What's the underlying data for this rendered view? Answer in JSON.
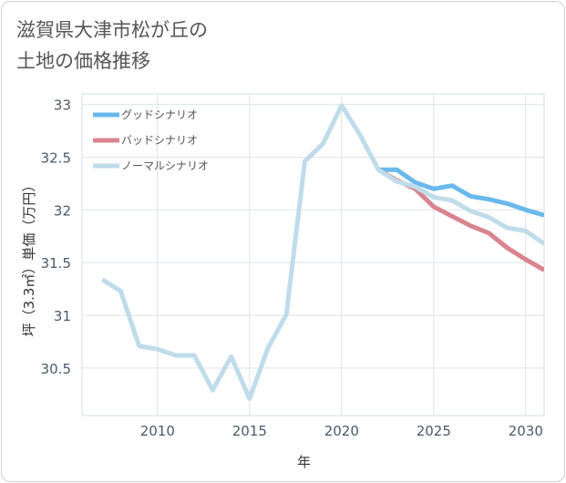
{
  "title": {
    "line1": "滋賀県大津市松が丘の",
    "line2": "土地の価格推移"
  },
  "chart_data": {
    "type": "line",
    "xlabel": "年",
    "ylabel": "坪（3.3㎡）単価（万円）",
    "xlim": [
      2005.9,
      2031
    ],
    "ylim": [
      30.05,
      33.1
    ],
    "x_ticks": [
      2010,
      2015,
      2020,
      2025,
      2030
    ],
    "y_ticks": [
      30.5,
      31,
      31.5,
      32,
      32.5,
      33
    ],
    "x_tick_labels": [
      "2010",
      "2015",
      "2020",
      "2025",
      "2030"
    ],
    "y_tick_labels": [
      "30.5",
      "31",
      "31.5",
      "32",
      "32.5",
      "33"
    ],
    "grid": true,
    "legend_position": "top-left",
    "series": [
      {
        "name": "グッドシナリオ",
        "color": "#6ab8ec",
        "x": [
          2022,
          2023,
          2024,
          2025,
          2026,
          2027,
          2028,
          2029,
          2030,
          2031
        ],
        "y": [
          32.38,
          32.38,
          32.26,
          32.2,
          32.23,
          32.13,
          32.1,
          32.06,
          32.0,
          31.95
        ]
      },
      {
        "name": "バッドシナリオ",
        "color": "#d9848f",
        "x": [
          2022,
          2023,
          2024,
          2025,
          2026,
          2027,
          2028,
          2029,
          2030,
          2031
        ],
        "y": [
          32.38,
          32.28,
          32.2,
          32.03,
          31.94,
          31.85,
          31.78,
          31.64,
          31.53,
          31.43
        ]
      },
      {
        "name": "ノーマルシナリオ",
        "color": "#c0dcea",
        "x": [
          2007,
          2008,
          2009,
          2010,
          2011,
          2012,
          2013,
          2014,
          2015,
          2016,
          2017,
          2018,
          2019,
          2020,
          2021,
          2022,
          2023,
          2024,
          2025,
          2026,
          2027,
          2028,
          2029,
          2030,
          2031
        ],
        "y": [
          31.34,
          31.23,
          30.71,
          30.68,
          30.62,
          30.62,
          30.29,
          30.61,
          30.21,
          30.69,
          31.01,
          32.46,
          32.63,
          32.99,
          32.71,
          32.38,
          32.27,
          32.22,
          32.12,
          32.09,
          31.99,
          31.93,
          31.83,
          31.8,
          31.68
        ]
      }
    ]
  }
}
